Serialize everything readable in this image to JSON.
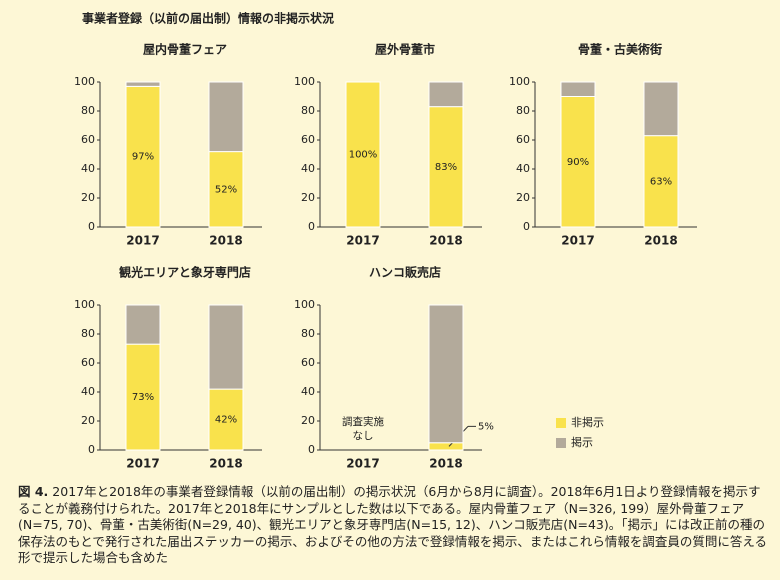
{
  "title": "事業者登録（以前の届出制）情報の非掲示状況",
  "caption": {
    "label": "図 4.",
    "text": "2017年と2018年の事業者登録情報（以前の届出制）の掲示状況（6月から8月に調査）。2018年6月1日より登録情報を掲示することが義務付けられた。2017年と2018年にサンプルとした数は以下である。屋内骨董フェア（N=326, 199）屋外骨董フェア(N=75, 70)、骨董・古美術街(N=29, 40)、観光エリアと象牙専門店(N=15, 12)、ハンコ販売店(N=43)。「掲示」には改正前の種の保存法のもとで発行された届出ステッカーの掲示、およびその他の方法で登録情報を掲示、またはこれら情報を調査員の質問に答える形で提示した場合も含めた"
  },
  "chart_data": [
    {
      "type": "stacked_bar",
      "title": "屋内骨董フェア",
      "categories": [
        "2017",
        "2018"
      ],
      "series": [
        {
          "name": "非掲示",
          "color": "#f9e24c",
          "values": [
            97,
            52
          ],
          "value_labels": [
            "97%",
            "52%"
          ]
        },
        {
          "name": "掲示",
          "color": "#b3aa9b",
          "values": [
            3,
            48
          ]
        }
      ],
      "ylim": [
        0,
        100
      ],
      "yticks": [
        0,
        20,
        40,
        60,
        80,
        100
      ]
    },
    {
      "type": "stacked_bar",
      "title": "屋外骨董市",
      "categories": [
        "2017",
        "2018"
      ],
      "series": [
        {
          "name": "非掲示",
          "color": "#f9e24c",
          "values": [
            100,
            83
          ],
          "value_labels": [
            "100%",
            "83%"
          ]
        },
        {
          "name": "掲示",
          "color": "#b3aa9b",
          "values": [
            0,
            17
          ]
        }
      ],
      "ylim": [
        0,
        100
      ],
      "yticks": [
        0,
        20,
        40,
        60,
        80,
        100
      ]
    },
    {
      "type": "stacked_bar",
      "title": "骨董・古美術街",
      "categories": [
        "2017",
        "2018"
      ],
      "series": [
        {
          "name": "非掲示",
          "color": "#f9e24c",
          "values": [
            90,
            63
          ],
          "value_labels": [
            "90%",
            "63%"
          ]
        },
        {
          "name": "掲示",
          "color": "#b3aa9b",
          "values": [
            10,
            37
          ]
        }
      ],
      "ylim": [
        0,
        100
      ],
      "yticks": [
        0,
        20,
        40,
        60,
        80,
        100
      ]
    },
    {
      "type": "stacked_bar",
      "title": "観光エリアと象牙専門店",
      "categories": [
        "2017",
        "2018"
      ],
      "series": [
        {
          "name": "非掲示",
          "color": "#f9e24c",
          "values": [
            73,
            42
          ],
          "value_labels": [
            "73%",
            "42%"
          ]
        },
        {
          "name": "掲示",
          "color": "#b3aa9b",
          "values": [
            27,
            58
          ]
        }
      ],
      "ylim": [
        0,
        100
      ],
      "yticks": [
        0,
        20,
        40,
        60,
        80,
        100
      ]
    },
    {
      "type": "stacked_bar",
      "title": "ハンコ販売店",
      "categories": [
        "2017",
        "2018"
      ],
      "series": [
        {
          "name": "非掲示",
          "color": "#f9e24c",
          "values": [
            null,
            5
          ],
          "value_labels": [
            null,
            "5%"
          ]
        },
        {
          "name": "掲示",
          "color": "#b3aa9b",
          "values": [
            null,
            95
          ]
        }
      ],
      "annotation_lines": [
        "調査実施",
        "なし"
      ],
      "ylim": [
        0,
        100
      ],
      "yticks": [
        0,
        20,
        40,
        60,
        80,
        100
      ]
    }
  ]
}
